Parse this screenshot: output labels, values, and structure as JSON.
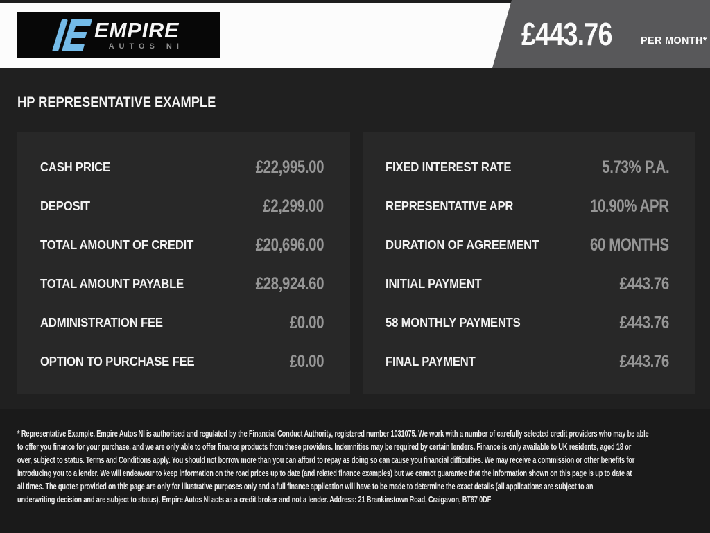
{
  "brand": {
    "name": "EMPIRE",
    "subtitle": "AUTOS NI",
    "accent_blue": "#74bbe8",
    "logo_background": "#070707"
  },
  "banner": {
    "price": "£443.76",
    "suffix": "PER MONTH*",
    "background": "#58585a"
  },
  "title": "HP REPRESENTATIVE EXAMPLE",
  "finance": {
    "left_rows": [
      {
        "label": "CASH PRICE",
        "value": "£22,995.00"
      },
      {
        "label": "DEPOSIT",
        "value": "£2,299.00"
      },
      {
        "label": "TOTAL AMOUNT OF CREDIT",
        "value": "£20,696.00"
      },
      {
        "label": "TOTAL AMOUNT PAYABLE",
        "value": "£28,924.60"
      },
      {
        "label": "ADMINISTRATION FEE",
        "value": "£0.00"
      },
      {
        "label": "OPTION TO PURCHASE FEE",
        "value": "£0.00"
      }
    ],
    "right_rows": [
      {
        "label": "FIXED INTEREST RATE",
        "value": "5.73% P.A."
      },
      {
        "label": "REPRESENTATIVE APR",
        "value": "10.90% APR"
      },
      {
        "label": "DURATION OF AGREEMENT",
        "value": "60 MONTHS"
      },
      {
        "label": "INITIAL PAYMENT",
        "value": "£443.76"
      },
      {
        "label": "58 MONTHLY PAYMENTS",
        "value": "£443.76"
      },
      {
        "label": "FINAL PAYMENT",
        "value": "£443.76"
      }
    ]
  },
  "disclaimer": {
    "lines": [
      "* Representative Example. Empire Autos NI is authorised and regulated by the Financial Conduct Authority, registered number 1031075. We work with a number of carefully selected credit providers who may be able",
      "to offer you finance for your purchase, and we are only able to offer finance products from these providers. Indemnities may be required by certain lenders. Finance is only available to UK residents, aged 18 or",
      "over, subject to status. Terms and Conditions apply. You should not borrow more than you can afford to repay as doing so can cause you financial difficulties. We may receive a commission or other benefits for",
      "introducing you to a lender. We will endeavour to keep information on the road prices up to date (and related finance examples) but we cannot guarantee that the information shown on this page is up to date at",
      "all times. The quotes provided on this page are only for illustrative purposes only and a full finance application will have to be made to determine the exact details (all applications are subject to an",
      "underwriting decision and are subject to status). Empire Autos NI acts as a credit broker and not a lender. Address: 21 Brankinstown Road, Craigavon, BT67 0DF"
    ]
  }
}
